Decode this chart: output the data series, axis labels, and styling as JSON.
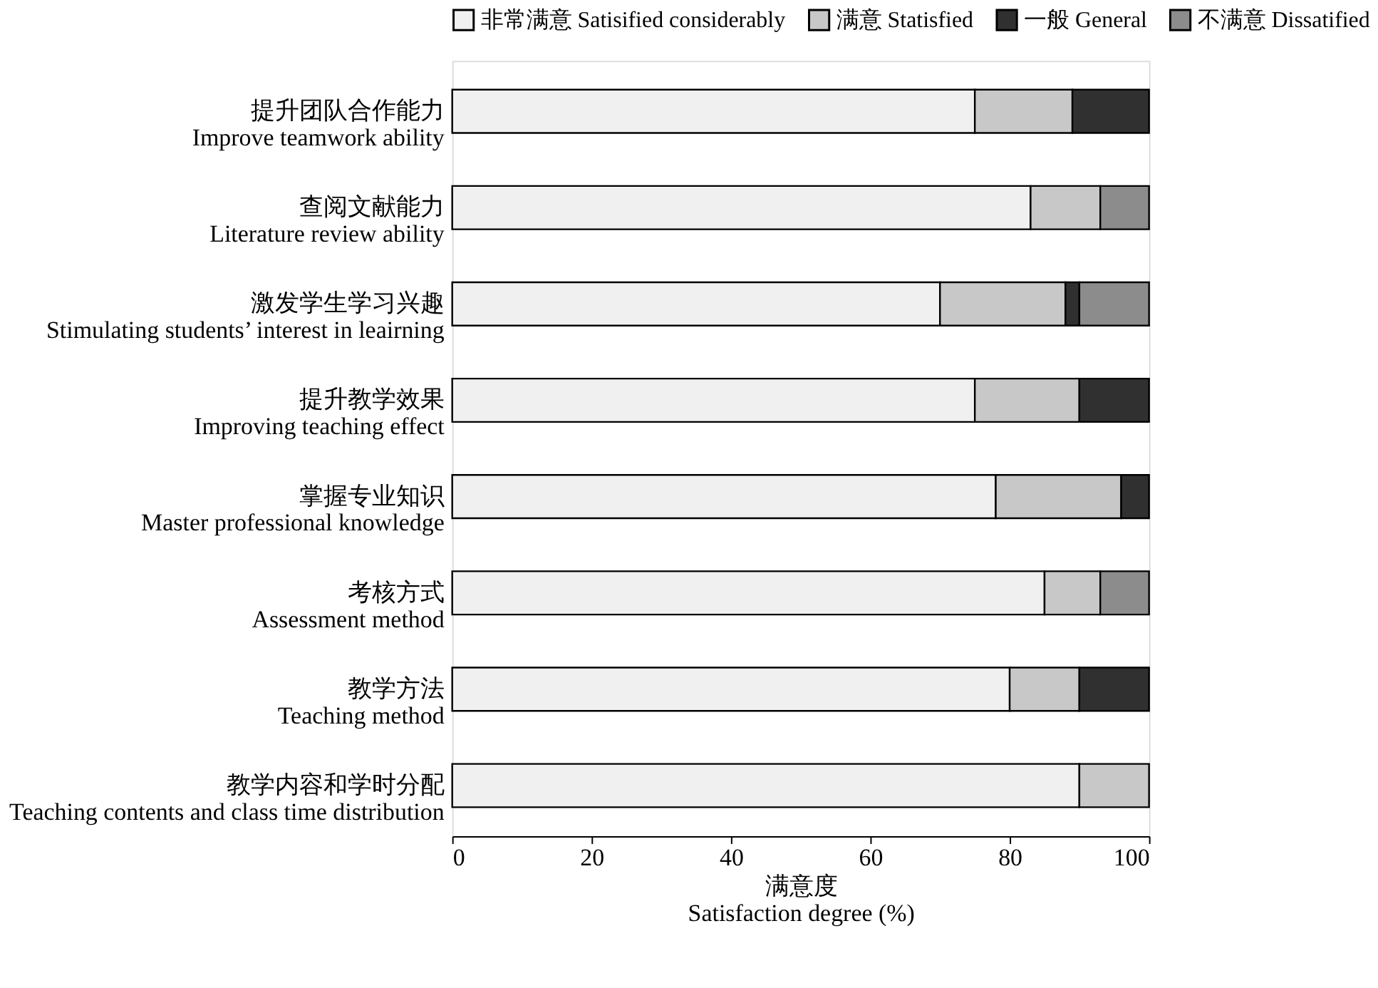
{
  "chart_data": {
    "type": "bar",
    "orientation": "horizontal",
    "stacked": true,
    "xlabel": "满意度\nSatisfaction degree (%)",
    "categories": [
      "提升团队合作能力\nImprove teamwork ability",
      "查阅文献能力\nLiterature review ability",
      "激发学生学习兴趣\nStimulating students’ interest in leairning",
      "提升教学效果\nImproving teaching effect",
      "掌握专业知识\nMaster professional knowledge",
      "考核方式\nAssessment method",
      "教学方法\nTeaching method",
      "教学内容和学时分配\nTeaching contents and class time distribution"
    ],
    "series": [
      {
        "name": "非常满意 Satisified considerably",
        "color": "#f0f0f0",
        "values": [
          75,
          83,
          70,
          75,
          78,
          85,
          80,
          90
        ]
      },
      {
        "name": "满意 Statisfied",
        "color": "#c8c8c8",
        "values": [
          14,
          10,
          18,
          15,
          18,
          8,
          10,
          10
        ]
      },
      {
        "name": "一般 General",
        "color": "#303030",
        "values": [
          11,
          null,
          2,
          10,
          4,
          null,
          10,
          null
        ]
      },
      {
        "name": "不满意 Dissatified",
        "color": "#8c8c8c",
        "values": [
          null,
          7,
          10,
          null,
          null,
          7,
          null,
          null
        ]
      }
    ],
    "xlim": [
      0,
      100
    ],
    "xticks": [
      0,
      20,
      40,
      60,
      80,
      100
    ],
    "grid": false,
    "legend": "top"
  }
}
